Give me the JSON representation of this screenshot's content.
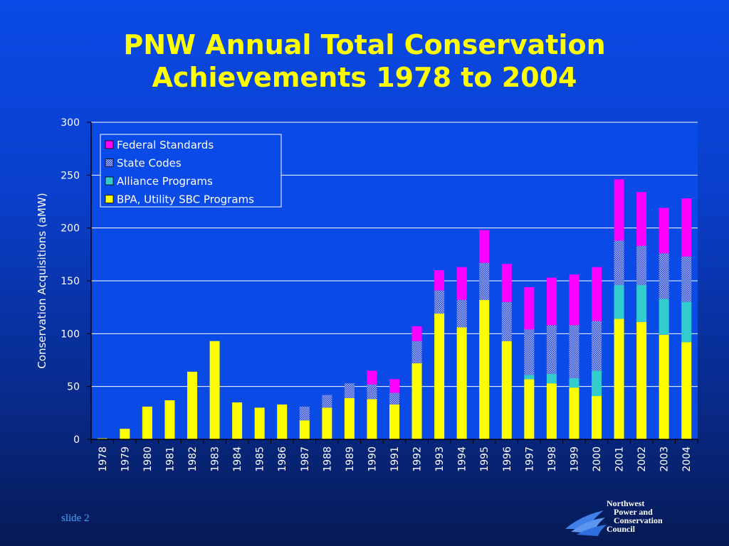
{
  "slide": {
    "title_line1": "PNW Annual Total Conservation",
    "title_line2": "Achievements 1978 to 2004",
    "number": "slide 2"
  },
  "logo": {
    "line1": "Northwest",
    "line2": "Power and",
    "line3": "Conservation",
    "line4": "Council"
  },
  "colors": {
    "federal": "#ff00ff",
    "state": "#5577ee",
    "alliance": "#33cccc",
    "bpa": "#ffff00",
    "plot_bg": "#0a4ae6",
    "grid": "#ffffff",
    "text": "#ffffff"
  },
  "chart_data": {
    "type": "bar",
    "stacked": true,
    "title": "",
    "xlabel": "",
    "ylabel": "Conservation Acquisitions (aMW)",
    "ylim": [
      0,
      300
    ],
    "yticks": [
      0,
      50,
      100,
      150,
      200,
      250,
      300
    ],
    "grid": true,
    "legend_position": "top-left",
    "categories": [
      "1978",
      "1979",
      "1980",
      "1981",
      "1982",
      "1983",
      "1984",
      "1985",
      "1986",
      "1987",
      "1988",
      "1989",
      "1990",
      "1991",
      "1992",
      "1993",
      "1994",
      "1995",
      "1996",
      "1997",
      "1998",
      "1999",
      "2000",
      "2001",
      "2002",
      "2003",
      "2004"
    ],
    "series": [
      {
        "name": "BPA, Utility SBC Programs",
        "key": "bpa",
        "values": [
          1,
          10,
          31,
          37,
          64,
          93,
          35,
          30,
          33,
          18,
          30,
          39,
          38,
          33,
          72,
          119,
          106,
          132,
          93,
          57,
          53,
          49,
          41,
          114,
          111,
          99,
          92
        ]
      },
      {
        "name": "Alliance Programs",
        "key": "alliance",
        "values": [
          0,
          0,
          0,
          0,
          0,
          0,
          0,
          0,
          0,
          0,
          0,
          0,
          0,
          0,
          0,
          0,
          0,
          0,
          0,
          4,
          9,
          9,
          24,
          32,
          35,
          34,
          38
        ]
      },
      {
        "name": "State Codes",
        "key": "state",
        "values": [
          0,
          0,
          0,
          0,
          0,
          0,
          0,
          0,
          0,
          13,
          12,
          14,
          14,
          11,
          21,
          22,
          26,
          35,
          37,
          43,
          46,
          50,
          47,
          42,
          37,
          43,
          43
        ]
      },
      {
        "name": "Federal Standards",
        "key": "federal",
        "values": [
          0,
          0,
          0,
          0,
          0,
          0,
          0,
          0,
          0,
          0,
          0,
          0,
          13,
          13,
          14,
          19,
          31,
          31,
          36,
          40,
          45,
          48,
          51,
          58,
          51,
          43,
          55
        ]
      }
    ],
    "legend_order": [
      "Federal Standards",
      "State Codes",
      "Alliance Programs",
      "BPA, Utility SBC Programs"
    ]
  }
}
